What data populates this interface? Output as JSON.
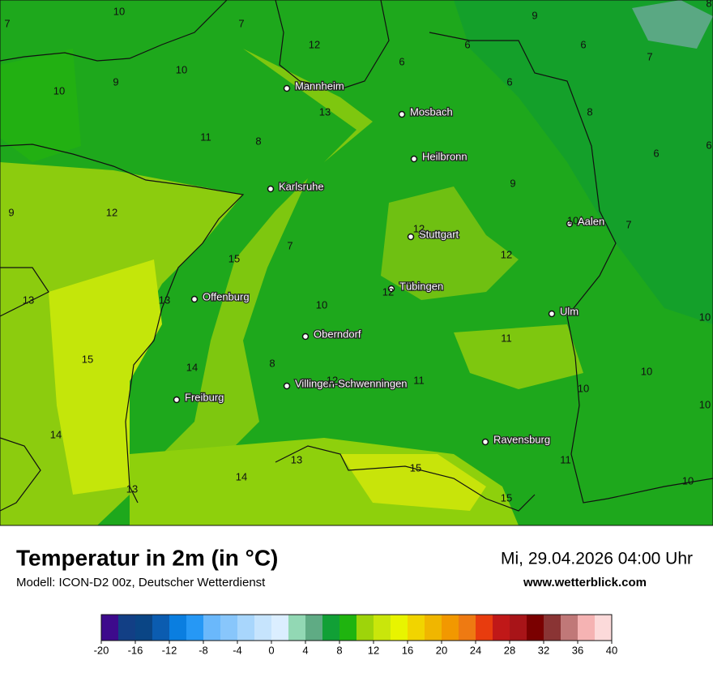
{
  "map": {
    "cities": [
      "Mannheim",
      "Mosbach",
      "Heilbronn",
      "Karlsruhe",
      "Stuttgart",
      "Aalen",
      "Tübingen",
      "Offenburg",
      "Ulm",
      "Oberndorf",
      "Villingen-Schwenningen",
      "Freiburg",
      "Ravensburg"
    ],
    "value_labels": [
      10,
      7,
      7,
      9,
      8,
      12,
      6,
      6,
      7,
      6,
      10,
      9,
      10,
      6,
      13,
      8,
      11,
      8,
      6,
      6,
      9,
      12,
      9,
      12,
      10,
      7,
      7,
      15,
      12,
      13,
      13,
      12,
      10,
      10,
      11,
      15,
      8,
      14,
      10,
      12,
      11,
      10,
      10,
      14,
      13,
      11,
      15,
      14,
      10,
      13,
      15
    ]
  },
  "header": {
    "title": "Temperatur in 2m (in °C)",
    "model": "Modell: ICON-D2 00z, Deutscher Wetterdienst",
    "datetime": "Mi, 29.04.2026 04:00 Uhr",
    "website": "www.wetterblick.com"
  },
  "legend": {
    "ticks": [
      -20,
      -16,
      -12,
      -8,
      -4,
      0,
      4,
      8,
      12,
      16,
      20,
      24,
      28,
      32,
      36,
      40
    ],
    "colors": [
      "#3d0a8c",
      "#123f85",
      "#0a4585",
      "#0b5cb0",
      "#0a7ee0",
      "#2698f5",
      "#6ab8fb",
      "#88c6fb",
      "#a8d6fc",
      "#c6e4fd",
      "#dbeeff",
      "#92d8b4",
      "#5fab84",
      "#11a036",
      "#1fb40f",
      "#9ed40a",
      "#c9e60b",
      "#e8f400",
      "#f1d400",
      "#f0b600",
      "#f29800",
      "#ee7a12",
      "#e83c0e",
      "#c01818",
      "#a81418",
      "#7a0000",
      "#8a3434",
      "#c07878",
      "#f5b3b3",
      "#fcdada"
    ]
  }
}
